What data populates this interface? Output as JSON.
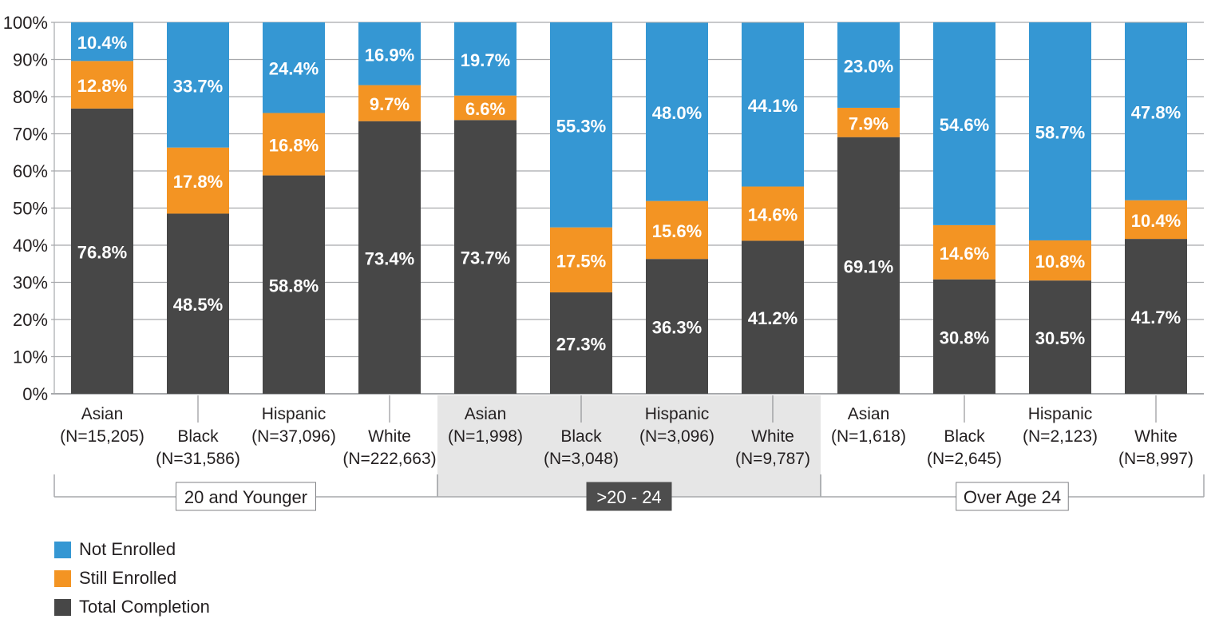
{
  "chart_data": {
    "type": "bar",
    "stacked": true,
    "title": "",
    "xlabel": "",
    "ylabel": "",
    "ylim": [
      0,
      100
    ],
    "y_ticks": [
      "0%",
      "10%",
      "20%",
      "30%",
      "40%",
      "50%",
      "60%",
      "70%",
      "80%",
      "90%",
      "100%"
    ],
    "grid": true,
    "legend_position": "bottom-left",
    "colors": {
      "Not Enrolled": "#3597d3",
      "Still Enrolled": "#f39423",
      "Total Completion": "#474747",
      "highlight_band": "#e6e6e6",
      "highlight_label_bg": "#4d4d4d"
    },
    "groups": [
      {
        "label": "20 and Younger",
        "highlighted": false
      },
      {
        "label": ">20 - 24",
        "highlighted": true
      },
      {
        "label": "Over Age 24",
        "highlighted": false
      }
    ],
    "categories": [
      {
        "group": 0,
        "name": "Asian",
        "n": "(N=15,205)"
      },
      {
        "group": 0,
        "name": "Black",
        "n": "(N=31,586)"
      },
      {
        "group": 0,
        "name": "Hispanic",
        "n": "(N=37,096)"
      },
      {
        "group": 0,
        "name": "White",
        "n": "(N=222,663)"
      },
      {
        "group": 1,
        "name": "Asian",
        "n": "(N=1,998)"
      },
      {
        "group": 1,
        "name": "Black",
        "n": "(N=3,048)"
      },
      {
        "group": 1,
        "name": "Hispanic",
        "n": "(N=3,096)"
      },
      {
        "group": 1,
        "name": "White",
        "n": "(N=9,787)"
      },
      {
        "group": 2,
        "name": "Asian",
        "n": "(N=1,618)"
      },
      {
        "group": 2,
        "name": "Black",
        "n": "(N=2,645)"
      },
      {
        "group": 2,
        "name": "Hispanic",
        "n": "(N=2,123)"
      },
      {
        "group": 2,
        "name": "White",
        "n": "(N=8,997)"
      }
    ],
    "series": [
      {
        "name": "Total Completion",
        "values": [
          76.8,
          48.5,
          58.8,
          73.4,
          73.7,
          27.3,
          36.3,
          41.2,
          69.1,
          30.8,
          30.5,
          41.7
        ]
      },
      {
        "name": "Still Enrolled",
        "values": [
          12.8,
          17.8,
          16.8,
          9.7,
          6.6,
          17.5,
          15.6,
          14.6,
          7.9,
          14.6,
          10.8,
          10.4
        ]
      },
      {
        "name": "Not Enrolled",
        "values": [
          10.4,
          33.7,
          24.4,
          16.9,
          19.7,
          55.3,
          48.0,
          44.1,
          23.0,
          54.6,
          58.7,
          47.8
        ]
      }
    ],
    "legend": [
      "Not Enrolled",
      "Still Enrolled",
      "Total Completion"
    ]
  }
}
